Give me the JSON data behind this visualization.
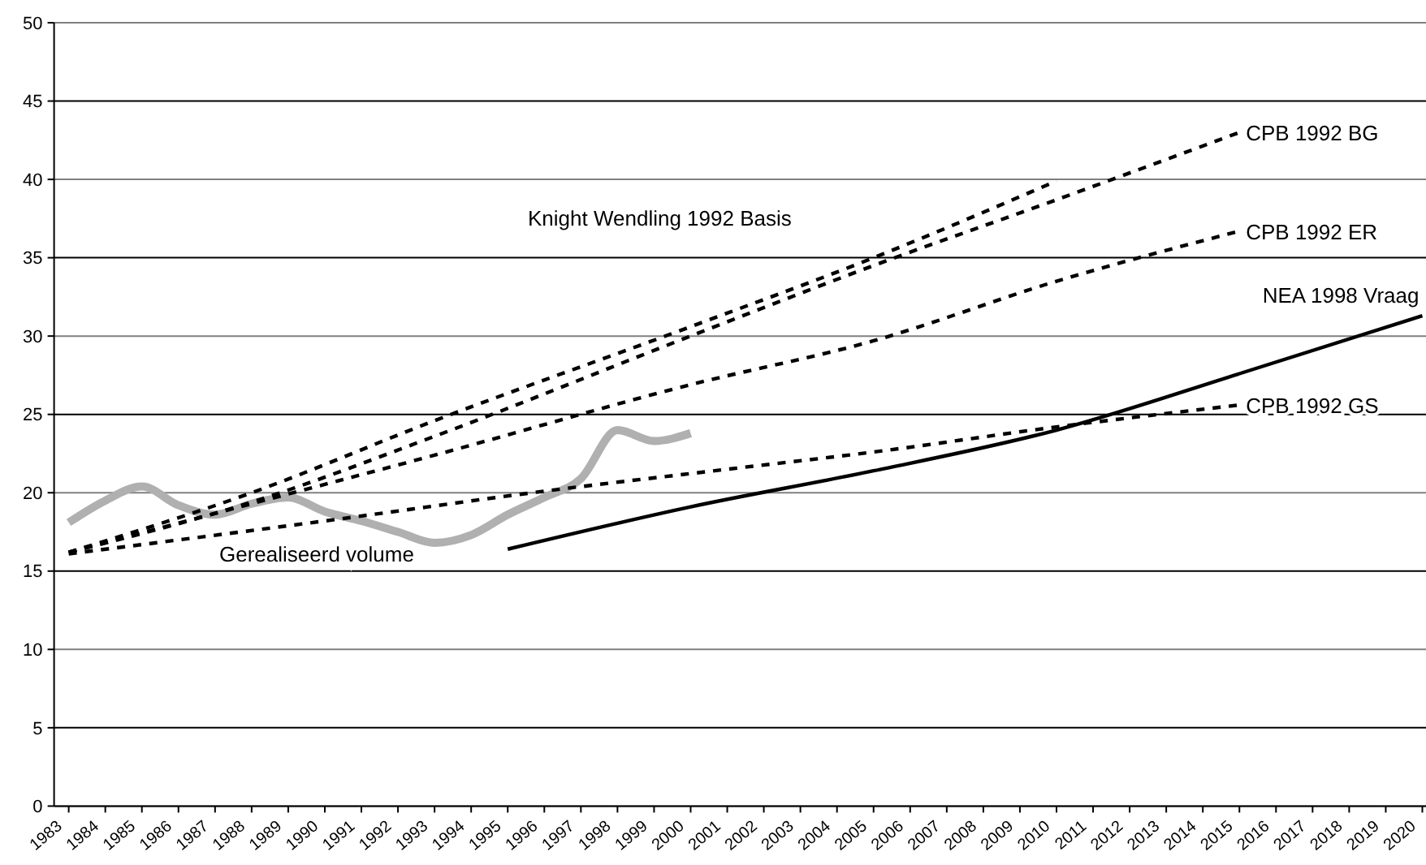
{
  "chart_data": {
    "type": "line",
    "xlim": [
      1982.6,
      2020.1
    ],
    "xticks": [
      1983,
      1984,
      1985,
      1986,
      1987,
      1988,
      1989,
      1990,
      1991,
      1992,
      1993,
      1994,
      1995,
      1996,
      1997,
      1998,
      1999,
      2000,
      2001,
      2002,
      2003,
      2004,
      2005,
      2006,
      2007,
      2008,
      2009,
      2010,
      2011,
      2012,
      2013,
      2014,
      2015,
      2016,
      2017,
      2018,
      2019,
      2020
    ],
    "ylim": [
      0,
      50
    ],
    "yticks": [
      0,
      5,
      10,
      15,
      20,
      25,
      30,
      35,
      40,
      45,
      50
    ],
    "grid": "y",
    "series": [
      {
        "name": "Gerealiseerd volume",
        "color": "#b0b0b0",
        "line_style": "solid",
        "x": [
          1983,
          1984,
          1985,
          1986,
          1987,
          1988,
          1989,
          1990,
          1991,
          1992,
          1993,
          1994,
          1995,
          1996,
          1997,
          1998,
          1999,
          2000
        ],
        "values": [
          18.1,
          19.5,
          20.4,
          19.2,
          18.6,
          19.3,
          19.7,
          18.8,
          18.2,
          17.5,
          16.8,
          17.3,
          18.6,
          19.7,
          20.9,
          24.0,
          23.3,
          23.8
        ]
      },
      {
        "name": "Knight Wendling 1992 Basis",
        "color": "#000000",
        "line_style": "dashed",
        "x": [
          1983,
          1988,
          1993,
          2000,
          2005,
          2010
        ],
        "values": [
          16.2,
          20.0,
          24.6,
          30.6,
          35.0,
          39.9
        ]
      },
      {
        "name": "CPB 1992 BG",
        "color": "#000000",
        "line_style": "dashed",
        "x": [
          1983,
          1988,
          1993,
          2000,
          2005,
          2010,
          2015
        ],
        "values": [
          16.2,
          19.4,
          23.6,
          30.0,
          34.5,
          38.7,
          43.0
        ]
      },
      {
        "name": "CPB 1992 ER",
        "color": "#000000",
        "line_style": "dashed",
        "x": [
          1983,
          1988,
          1993,
          2000,
          2005,
          2010,
          2015
        ],
        "values": [
          16.2,
          19.3,
          22.4,
          26.9,
          29.7,
          33.5,
          36.7
        ]
      },
      {
        "name": "NEA 1998 Vraag",
        "color": "#000000",
        "line_style": "solid",
        "x": [
          1995,
          2000,
          2005,
          2010,
          2015,
          2020
        ],
        "values": [
          16.4,
          19.1,
          21.4,
          24.0,
          27.6,
          31.3
        ]
      },
      {
        "name": "CPB 1992 GS",
        "color": "#000000",
        "line_style": "dashed",
        "x": [
          1983,
          1990,
          1996,
          2001,
          2005,
          2010,
          2015
        ],
        "values": [
          16.1,
          18.2,
          20.1,
          21.5,
          22.6,
          24.2,
          25.6
        ]
      }
    ]
  }
}
